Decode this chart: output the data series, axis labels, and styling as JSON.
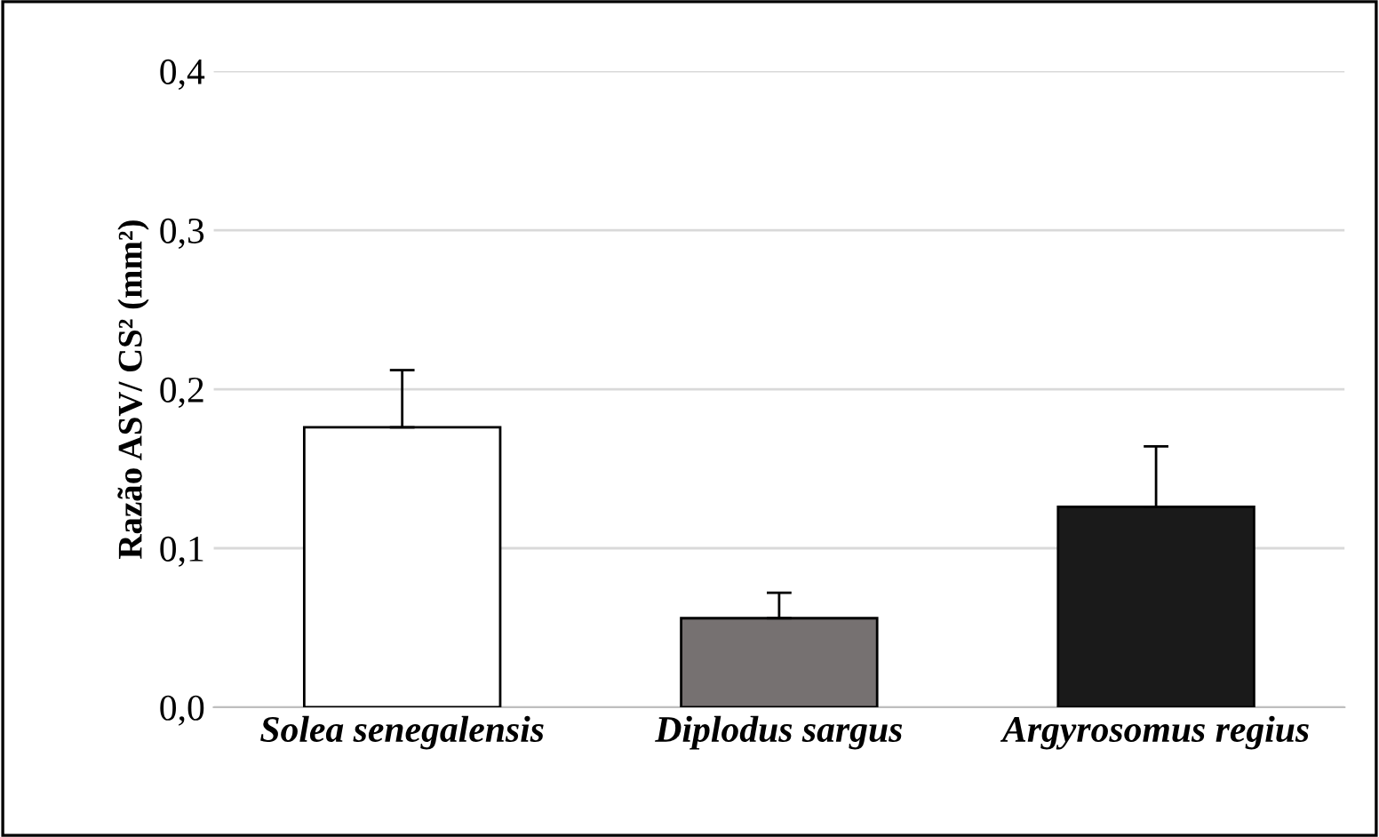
{
  "chart_data": {
    "type": "bar",
    "ylabel": "Razão ASV/ CS² (mm²)",
    "categories": [
      "Solea senegalensis",
      "Diplodus sargus",
      "Argyrosomus regius"
    ],
    "values": [
      0.176,
      0.056,
      0.126
    ],
    "colors": [
      "#ffffff",
      "#767171",
      "#1a1a1a"
    ],
    "errors": [
      [
        0.176,
        0.212
      ],
      [
        0.056,
        0.072
      ],
      [
        0.126,
        0.164
      ]
    ],
    "ylim": [
      0,
      0.4
    ],
    "yticks": [
      {
        "value": 0,
        "label": "0,0"
      },
      {
        "value": 0.1,
        "label": "0,1"
      },
      {
        "value": 0.2,
        "label": "0,2"
      },
      {
        "value": 0.3,
        "label": "0,3"
      },
      {
        "value": 0.4,
        "label": "0,4"
      }
    ],
    "grid": "y"
  }
}
